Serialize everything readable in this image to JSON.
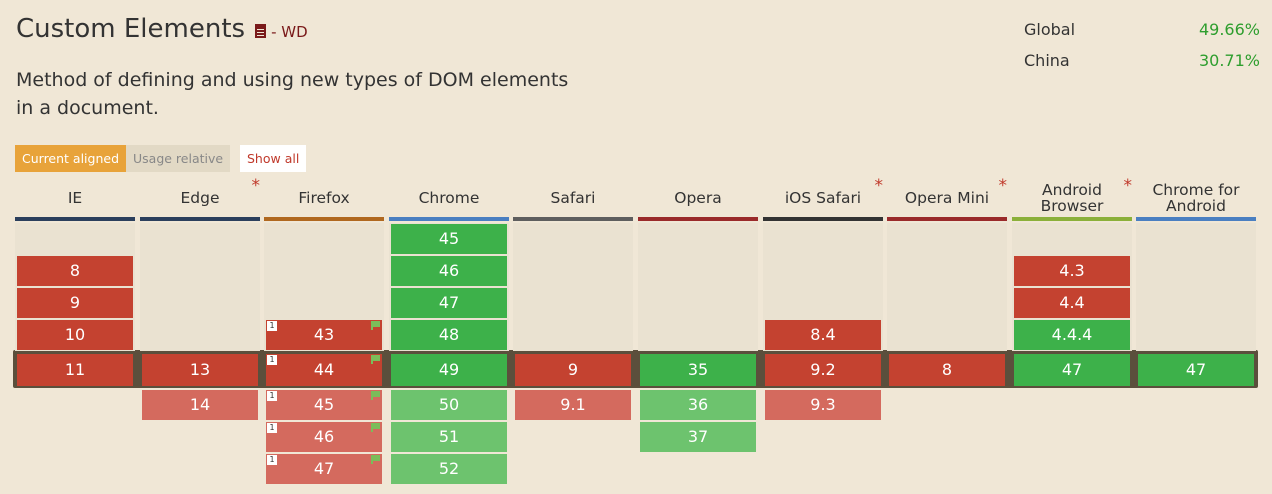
{
  "feature": {
    "title": "Custom Elements",
    "status": "- WD",
    "description": "Method of defining and using new types of DOM elements in a document."
  },
  "stats": [
    {
      "label": "Global",
      "value": "49.66%"
    },
    {
      "label": "China",
      "value": "30.71%"
    }
  ],
  "controls": {
    "current_aligned": "Current aligned",
    "usage_relative": "Usage relative",
    "show_all": "Show all"
  },
  "colors": {
    "supported": "#3db14a",
    "unsupported": "#c44230",
    "future_supported": "#6dc36e",
    "future_unsupported": "#d46a5e",
    "accent": "#e8a33a"
  },
  "browsers": [
    {
      "name": "IE",
      "asterisk": false,
      "line_color": "#2b3f5c",
      "past": [
        {
          "v": "8",
          "s": "n"
        },
        {
          "v": "9",
          "s": "n"
        },
        {
          "v": "10",
          "s": "n"
        }
      ],
      "current": {
        "v": "11",
        "s": "n"
      },
      "future": []
    },
    {
      "name": "Edge",
      "asterisk": true,
      "line_color": "#2b3f5c",
      "past": [],
      "current": {
        "v": "13",
        "s": "n"
      },
      "future": [
        {
          "v": "14",
          "s": "n"
        }
      ]
    },
    {
      "name": "Firefox",
      "asterisk": false,
      "line_color": "#b0681f",
      "past": [
        {
          "v": "43",
          "s": "n",
          "note": "1",
          "flag": true
        }
      ],
      "current": {
        "v": "44",
        "s": "n",
        "note": "1",
        "flag": true
      },
      "future": [
        {
          "v": "45",
          "s": "n",
          "note": "1",
          "flag": true
        },
        {
          "v": "46",
          "s": "n",
          "note": "1",
          "flag": true
        },
        {
          "v": "47",
          "s": "n",
          "note": "1",
          "flag": true
        }
      ]
    },
    {
      "name": "Chrome",
      "asterisk": false,
      "line_color": "#4a7fc1",
      "past": [
        {
          "v": "45",
          "s": "y"
        },
        {
          "v": "46",
          "s": "y"
        },
        {
          "v": "47",
          "s": "y"
        },
        {
          "v": "48",
          "s": "y"
        }
      ],
      "current": {
        "v": "49",
        "s": "y"
      },
      "future": [
        {
          "v": "50",
          "s": "y"
        },
        {
          "v": "51",
          "s": "y"
        },
        {
          "v": "52",
          "s": "y"
        }
      ]
    },
    {
      "name": "Safari",
      "asterisk": false,
      "line_color": "#5e5e5e",
      "past": [],
      "current": {
        "v": "9",
        "s": "n"
      },
      "future": [
        {
          "v": "9.1",
          "s": "n"
        }
      ]
    },
    {
      "name": "Opera",
      "asterisk": false,
      "line_color": "#9a2a2a",
      "past": [],
      "current": {
        "v": "35",
        "s": "y"
      },
      "future": [
        {
          "v": "36",
          "s": "y"
        },
        {
          "v": "37",
          "s": "y"
        }
      ]
    },
    {
      "name": "iOS Safari",
      "asterisk": true,
      "line_color": "#333333",
      "past": [
        {
          "v": "8.4",
          "s": "n"
        }
      ],
      "current": {
        "v": "9.2",
        "s": "n"
      },
      "future": [
        {
          "v": "9.3",
          "s": "n"
        }
      ]
    },
    {
      "name": "Opera Mini",
      "asterisk": true,
      "line_color": "#9a2a2a",
      "past": [],
      "current": {
        "v": "8",
        "s": "n"
      },
      "future": []
    },
    {
      "name": "Android Browser",
      "asterisk": true,
      "line_color": "#8bb03a",
      "past": [
        {
          "v": "4.3",
          "s": "n"
        },
        {
          "v": "4.4",
          "s": "n"
        },
        {
          "v": "4.4.4",
          "s": "y"
        }
      ],
      "current": {
        "v": "47",
        "s": "y"
      },
      "future": []
    },
    {
      "name": "Chrome for Android",
      "asterisk": false,
      "line_color": "#4a7fc1",
      "past": [],
      "current": {
        "v": "47",
        "s": "y"
      },
      "future": []
    }
  ]
}
